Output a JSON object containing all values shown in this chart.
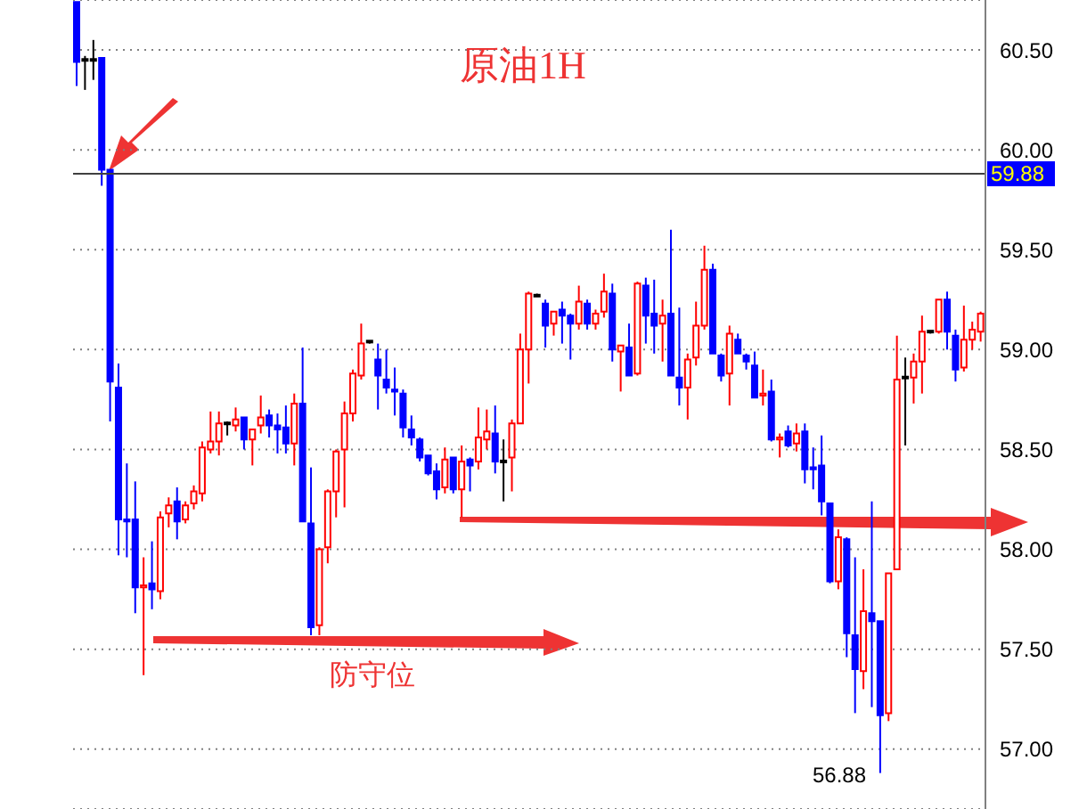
{
  "chart_data": {
    "type": "candlestick",
    "title": "原油1H",
    "annotations": [
      "防守位",
      "56.88"
    ],
    "categories": [
      null,
      null,
      null,
      null,
      null,
      null,
      null,
      null,
      null,
      null,
      null,
      null,
      null,
      null,
      null,
      null,
      null,
      null,
      null,
      null,
      null,
      null,
      null,
      null,
      null,
      null,
      null,
      null,
      null,
      null,
      null,
      null,
      null,
      null,
      null,
      null,
      null,
      null,
      null,
      null,
      null,
      null,
      null,
      null,
      null,
      null,
      null,
      null,
      null,
      null,
      null,
      null,
      null,
      null,
      null,
      null,
      null,
      null,
      null,
      null,
      null,
      null,
      null,
      null,
      null,
      null,
      null,
      null,
      null,
      null,
      null,
      null,
      null,
      null,
      null,
      null,
      null,
      null,
      null,
      null,
      null,
      null,
      null,
      null,
      null,
      null,
      null,
      null,
      null,
      null,
      null,
      null,
      null,
      null,
      null,
      null,
      null,
      null,
      null,
      null,
      null,
      null,
      null,
      null,
      null,
      null,
      null,
      null,
      null
    ],
    "ohlc": [
      [
        60.74,
        60.74,
        60.32,
        60.44
      ],
      [
        60.45,
        60.47,
        60.3,
        60.45
      ],
      [
        60.45,
        60.55,
        60.35,
        60.45
      ],
      [
        60.46,
        60.46,
        59.82,
        59.9
      ],
      [
        59.9,
        59.9,
        58.64,
        58.84
      ],
      [
        58.81,
        58.93,
        57.97,
        58.15
      ],
      [
        58.15,
        58.43,
        57.96,
        58.14
      ],
      [
        58.15,
        58.34,
        57.68,
        57.81
      ],
      [
        57.81,
        57.96,
        57.37,
        57.82
      ],
      [
        57.83,
        58.04,
        57.7,
        57.8
      ],
      [
        57.79,
        58.19,
        57.75,
        58.16
      ],
      [
        58.18,
        58.26,
        58.11,
        58.22
      ],
      [
        58.24,
        58.31,
        58.05,
        58.14
      ],
      [
        58.15,
        58.24,
        58.13,
        58.22
      ],
      [
        58.23,
        58.32,
        58.2,
        58.29
      ],
      [
        58.28,
        58.54,
        58.24,
        58.51
      ],
      [
        58.5,
        58.69,
        58.48,
        58.54
      ],
      [
        58.54,
        58.69,
        58.47,
        58.63
      ],
      [
        58.63,
        58.64,
        58.57,
        58.63
      ],
      [
        58.62,
        58.71,
        58.59,
        58.65
      ],
      [
        58.66,
        58.66,
        58.5,
        58.55
      ],
      [
        58.55,
        58.6,
        58.42,
        58.6
      ],
      [
        58.62,
        58.77,
        58.58,
        58.66
      ],
      [
        58.67,
        58.7,
        58.56,
        58.62
      ],
      [
        58.62,
        58.68,
        58.48,
        58.6
      ],
      [
        58.61,
        58.72,
        58.48,
        58.53
      ],
      [
        58.53,
        58.78,
        58.42,
        58.73
      ],
      [
        58.73,
        59.01,
        58.14,
        58.14
      ],
      [
        58.13,
        58.41,
        57.57,
        57.61
      ],
      [
        57.62,
        58.01,
        57.57,
        58.0
      ],
      [
        58.01,
        58.3,
        57.93,
        58.29
      ],
      [
        58.29,
        58.5,
        58.16,
        58.49
      ],
      [
        58.5,
        58.74,
        58.21,
        58.68
      ],
      [
        58.68,
        58.9,
        58.64,
        58.88
      ],
      [
        58.87,
        59.13,
        58.85,
        59.03
      ],
      [
        59.04,
        59.04,
        59.03,
        59.04
      ],
      [
        58.95,
        59.03,
        58.7,
        58.87
      ],
      [
        58.85,
        59.0,
        58.78,
        58.81
      ],
      [
        58.8,
        58.91,
        58.67,
        58.79
      ],
      [
        58.78,
        58.8,
        58.56,
        58.61
      ],
      [
        58.6,
        58.67,
        58.52,
        58.56
      ],
      [
        58.55,
        58.56,
        58.44,
        58.46
      ],
      [
        58.47,
        58.47,
        58.37,
        58.38
      ],
      [
        58.39,
        58.43,
        58.25,
        58.3
      ],
      [
        58.31,
        58.51,
        58.28,
        58.45
      ],
      [
        58.46,
        58.46,
        58.28,
        58.3
      ],
      [
        58.3,
        58.52,
        58.16,
        58.44
      ],
      [
        58.45,
        58.46,
        58.29,
        58.42
      ],
      [
        58.44,
        58.71,
        58.4,
        58.56
      ],
      [
        58.55,
        58.7,
        58.5,
        58.59
      ],
      [
        58.58,
        58.72,
        58.38,
        58.44
      ],
      [
        58.44,
        58.55,
        58.24,
        58.44
      ],
      [
        58.46,
        58.65,
        58.29,
        58.63
      ],
      [
        58.63,
        59.08,
        58.63,
        59.0
      ],
      [
        59.0,
        59.29,
        58.83,
        59.28
      ],
      [
        59.27,
        59.28,
        59.27,
        59.27
      ],
      [
        59.23,
        59.25,
        59.01,
        59.12
      ],
      [
        59.13,
        59.19,
        59.07,
        59.19
      ],
      [
        59.2,
        59.24,
        59.03,
        59.17
      ],
      [
        59.17,
        59.18,
        58.95,
        59.13
      ],
      [
        59.13,
        59.32,
        59.1,
        59.24
      ],
      [
        59.23,
        59.25,
        59.1,
        59.13
      ],
      [
        59.13,
        59.2,
        59.1,
        59.18
      ],
      [
        59.19,
        59.38,
        59.16,
        59.29
      ],
      [
        59.28,
        59.33,
        58.94,
        59.0
      ],
      [
        58.99,
        59.02,
        58.79,
        59.02
      ],
      [
        59.01,
        59.13,
        58.87,
        58.87
      ],
      [
        58.88,
        59.34,
        58.87,
        59.33
      ],
      [
        59.32,
        59.36,
        59.03,
        59.17
      ],
      [
        59.18,
        59.35,
        58.98,
        59.12
      ],
      [
        59.13,
        59.25,
        58.94,
        59.17
      ],
      [
        59.18,
        59.6,
        58.87,
        58.87
      ],
      [
        58.86,
        59.21,
        58.72,
        58.81
      ],
      [
        58.81,
        58.98,
        58.65,
        58.95
      ],
      [
        58.96,
        59.24,
        58.92,
        59.12
      ],
      [
        59.12,
        59.52,
        59.1,
        59.4
      ],
      [
        59.4,
        59.43,
        58.98,
        58.98
      ],
      [
        58.97,
        58.98,
        58.84,
        58.87
      ],
      [
        58.88,
        59.12,
        58.72,
        59.08
      ],
      [
        59.05,
        59.08,
        58.98,
        58.98
      ],
      [
        58.97,
        58.98,
        58.9,
        58.94
      ],
      [
        58.92,
        58.99,
        58.76,
        58.76
      ],
      [
        58.77,
        58.9,
        58.72,
        58.78
      ],
      [
        58.79,
        58.85,
        58.54,
        58.55
      ],
      [
        58.55,
        58.58,
        58.46,
        58.56
      ],
      [
        58.59,
        58.62,
        58.51,
        58.52
      ],
      [
        58.53,
        58.63,
        58.49,
        58.58
      ],
      [
        58.59,
        58.63,
        58.33,
        58.4
      ],
      [
        58.41,
        58.51,
        58.3,
        58.4
      ],
      [
        58.42,
        58.57,
        58.17,
        58.24
      ],
      [
        58.23,
        58.23,
        57.83,
        57.84
      ],
      [
        57.84,
        58.1,
        57.8,
        58.06
      ],
      [
        58.05,
        58.06,
        57.46,
        57.58
      ],
      [
        57.57,
        57.96,
        57.18,
        57.4
      ],
      [
        57.39,
        57.9,
        57.3,
        57.69
      ],
      [
        57.68,
        58.24,
        57.21,
        57.64
      ],
      [
        57.64,
        57.64,
        56.88,
        57.17
      ],
      [
        57.18,
        57.88,
        57.14,
        57.88
      ],
      [
        57.9,
        59.07,
        57.9,
        58.85
      ],
      [
        58.86,
        58.96,
        58.52,
        58.86
      ],
      [
        58.86,
        58.98,
        58.73,
        58.94
      ],
      [
        58.94,
        59.17,
        58.78,
        59.09
      ],
      [
        59.09,
        59.09,
        59.08,
        59.09
      ],
      [
        59.09,
        59.25,
        59.08,
        59.25
      ],
      [
        59.25,
        59.29,
        59.0,
        59.09
      ],
      [
        59.07,
        59.1,
        58.84,
        58.9
      ],
      [
        58.91,
        59.22,
        58.89,
        59.05
      ],
      [
        59.05,
        59.14,
        59.0,
        59.1
      ],
      [
        59.09,
        59.19,
        59.04,
        59.18
      ]
    ],
    "colors": [
      "#0000ff",
      "#000000",
      "#000000",
      "#0000ff",
      "#0000ff",
      "#0000ff",
      "#0000ff",
      "#0000ff",
      "#ff0000",
      "#0000ff",
      "#ff0000",
      "#ff0000",
      "#0000ff",
      "#ff0000",
      "#ff0000",
      "#ff0000",
      "#ff0000",
      "#ff0000",
      "#000000",
      "#ff0000",
      "#0000ff",
      "#ff0000",
      "#ff0000",
      "#0000ff",
      "#0000ff",
      "#0000ff",
      "#ff0000",
      "#0000ff",
      "#0000ff",
      "#ff0000",
      "#ff0000",
      "#ff0000",
      "#ff0000",
      "#ff0000",
      "#ff0000",
      "#000000",
      "#0000ff",
      "#0000ff",
      "#0000ff",
      "#0000ff",
      "#0000ff",
      "#0000ff",
      "#0000ff",
      "#0000ff",
      "#ff0000",
      "#0000ff",
      "#ff0000",
      "#0000ff",
      "#ff0000",
      "#ff0000",
      "#0000ff",
      "#000000",
      "#ff0000",
      "#ff0000",
      "#ff0000",
      "#000000",
      "#0000ff",
      "#ff0000",
      "#0000ff",
      "#0000ff",
      "#ff0000",
      "#0000ff",
      "#ff0000",
      "#ff0000",
      "#0000ff",
      "#ff0000",
      "#0000ff",
      "#ff0000",
      "#0000ff",
      "#0000ff",
      "#ff0000",
      "#0000ff",
      "#0000ff",
      "#ff0000",
      "#ff0000",
      "#ff0000",
      "#0000ff",
      "#0000ff",
      "#ff0000",
      "#0000ff",
      "#0000ff",
      "#0000ff",
      "#ff0000",
      "#0000ff",
      "#ff0000",
      "#0000ff",
      "#ff0000",
      "#0000ff",
      "#0000ff",
      "#0000ff",
      "#0000ff",
      "#ff0000",
      "#0000ff",
      "#0000ff",
      "#ff0000",
      "#0000ff",
      "#0000ff",
      "#ff0000",
      "#ff0000",
      "#000000",
      "#ff0000",
      "#ff0000",
      "#000000",
      "#ff0000",
      "#0000ff",
      "#0000ff",
      "#ff0000",
      "#ff0000",
      "#ff0000"
    ],
    "ylim": [
      56.7,
      60.75
    ],
    "yticks": [
      {
        "value": 57,
        "label": "57.00"
      },
      {
        "value": 57.5,
        "label": "57.50"
      },
      {
        "value": 58,
        "label": "58.00"
      },
      {
        "value": 58.5,
        "label": "58.50"
      },
      {
        "value": 59,
        "label": "59.00"
      },
      {
        "value": 59.5,
        "label": "59.50"
      },
      {
        "value": 60,
        "label": "60.00"
      },
      {
        "value": 60.5,
        "label": "60.50"
      }
    ],
    "ref_lines": [
      {
        "axis": "y",
        "value": 59.88,
        "label": "59.88",
        "color": "#404040"
      }
    ],
    "grid": "y",
    "tick_labels": "y"
  }
}
